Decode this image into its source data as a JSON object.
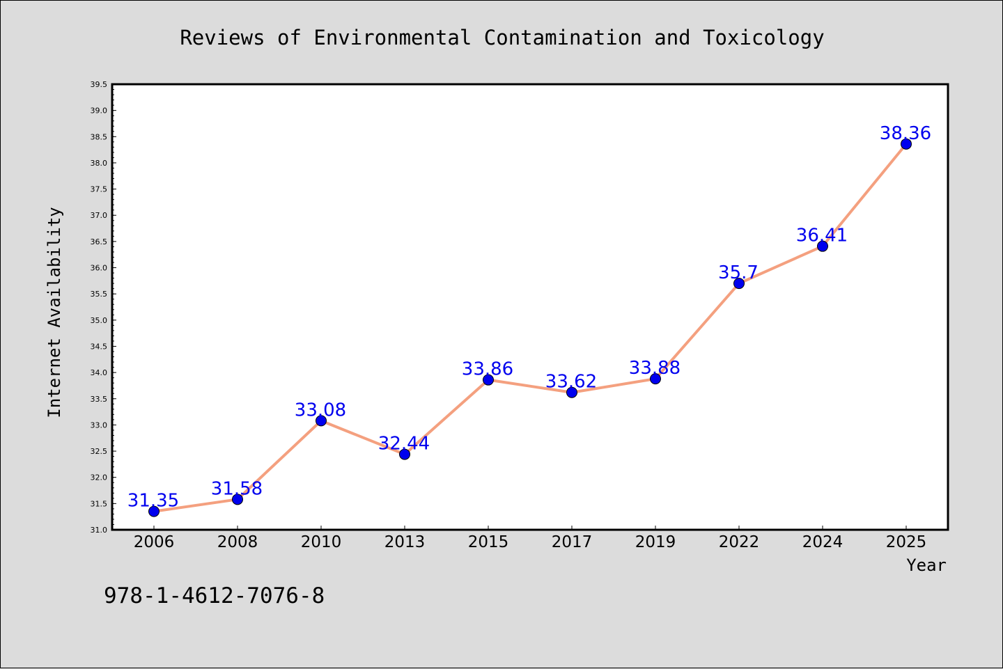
{
  "chart_data": {
    "type": "line",
    "title": "Reviews of Environmental Contamination and Toxicology",
    "xlabel": "Year",
    "ylabel": "Internet Availability",
    "categories": [
      "2006",
      "2008",
      "2010",
      "2013",
      "2015",
      "2017",
      "2019",
      "2022",
      "2024",
      "2025"
    ],
    "series": [
      {
        "values": [
          31.35,
          31.58,
          33.08,
          32.44,
          33.86,
          33.62,
          33.88,
          35.7,
          36.41,
          38.36
        ],
        "labels": [
          "31.35",
          "31.58",
          "33.08",
          "32.44",
          "33.86",
          "33.62",
          "33.88",
          "35.7",
          "36.41",
          "38.36"
        ],
        "line_color": "#f4a07f",
        "marker_color": "#0000ee"
      }
    ],
    "ylim": [
      31.0,
      39.5
    ],
    "yticks": [
      "31.0",
      "31.5",
      "32.0",
      "32.5",
      "33.0",
      "33.5",
      "34.0",
      "34.5",
      "35.0",
      "35.5",
      "36.0",
      "36.5",
      "37.0",
      "37.5",
      "38.0",
      "38.5",
      "39.0",
      "39.5"
    ],
    "grid": false,
    "legend": "none"
  },
  "footer": {
    "isbn": "978-1-4612-7076-8"
  }
}
